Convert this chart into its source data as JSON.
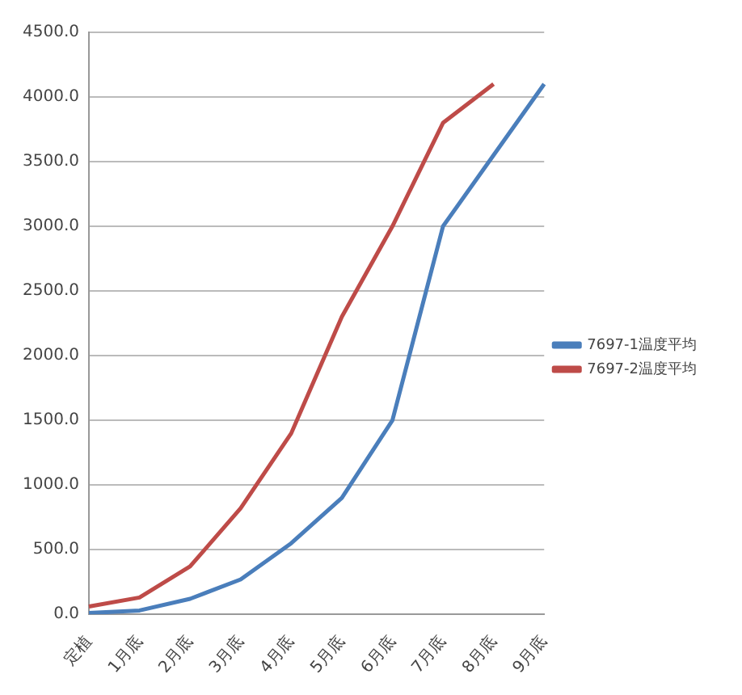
{
  "chart_data": {
    "type": "line",
    "categories": [
      "定植",
      "1月底",
      "2月底",
      "3月底",
      "4月底",
      "5月底",
      "6月底",
      "7月底",
      "8月底",
      "9月底"
    ],
    "series": [
      {
        "name": "7697-1温度平均",
        "color": "#4a7ebb",
        "values": [
          10,
          30,
          120,
          270,
          550,
          900,
          1500,
          3000,
          3550,
          4100
        ]
      },
      {
        "name": "7697-2温度平均",
        "color": "#be4b48",
        "values": [
          60,
          130,
          370,
          820,
          1400,
          2300,
          3000,
          3800,
          4100,
          null
        ]
      }
    ],
    "ylim": [
      0,
      4500
    ],
    "yticks": [
      {
        "value": 0,
        "label": "0.0"
      },
      {
        "value": 500,
        "label": "500.0"
      },
      {
        "value": 1000,
        "label": "1000.0"
      },
      {
        "value": 1500,
        "label": "1500.0"
      },
      {
        "value": 2000,
        "label": "2000.0"
      },
      {
        "value": 2500,
        "label": "2500.0"
      },
      {
        "value": 3000,
        "label": "3000.0"
      },
      {
        "value": 3500,
        "label": "3500.0"
      },
      {
        "value": 4000,
        "label": "4000.0"
      },
      {
        "value": 4500,
        "label": "4500.0"
      }
    ],
    "grid": "y",
    "legend": "right",
    "marker": "none",
    "line_style": "solid"
  }
}
